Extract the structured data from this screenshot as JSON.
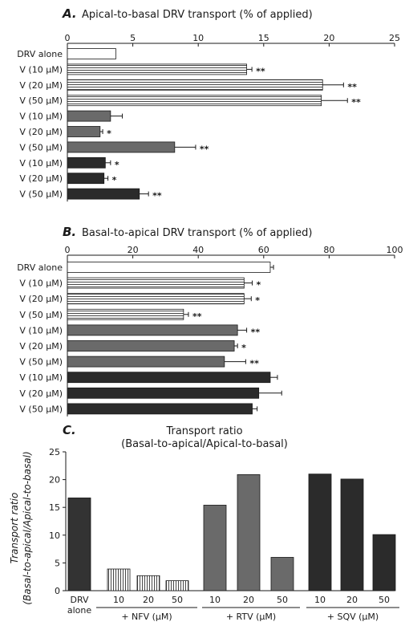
{
  "panels": [
    {
      "letter": "A.",
      "title": "Apical-to-basal DRV transport (% of applied)",
      "chart_data": {
        "type": "bar",
        "orientation": "horizontal",
        "title": "Apical-to-basal DRV transport (% of applied)",
        "xlim": [
          0,
          25
        ],
        "xticks": [
          0,
          5,
          10,
          15,
          20,
          25
        ],
        "categories": [
          "DRV alone",
          "V (10 μM)",
          "V (20 μM)",
          "V (50 μM)",
          "V (10 μM)",
          "V (20 μM)",
          "V (50 μM)",
          "V (10 μM)",
          "V (20 μM)",
          "V (50 μM)"
        ],
        "values": [
          3.7,
          13.7,
          19.5,
          19.4,
          3.3,
          2.5,
          8.2,
          2.9,
          2.8,
          5.5
        ],
        "errors": [
          0,
          0.4,
          1.6,
          2.0,
          0.9,
          0.2,
          1.6,
          0.4,
          0.3,
          0.7
        ],
        "significance": [
          "",
          "**",
          "**",
          "**",
          "",
          "*",
          "**",
          "*",
          "*",
          "**"
        ],
        "groups": [
          "white",
          "striped",
          "striped",
          "striped",
          "gray",
          "gray",
          "gray",
          "dark",
          "dark",
          "dark"
        ]
      }
    },
    {
      "letter": "B.",
      "title": "Basal-to-apical DRV transport (% of applied)",
      "chart_data": {
        "type": "bar",
        "orientation": "horizontal",
        "title": "Basal-to-apical DRV transport (% of applied)",
        "xlim": [
          0,
          100
        ],
        "xticks": [
          0,
          20,
          40,
          60,
          80,
          100
        ],
        "categories": [
          "DRV alone",
          "V (10 μM)",
          "V (20 μM)",
          "V (50 μM)",
          "V (10 μM)",
          "V (20 μM)",
          "V (50 μM)",
          "V (10 μM)",
          "V (20 μM)",
          "V (50 μM)"
        ],
        "values": [
          62,
          54,
          54,
          35.5,
          52,
          51,
          48,
          62,
          58.5,
          56.5
        ],
        "errors": [
          1,
          2.5,
          2.2,
          1.5,
          2.8,
          1.0,
          6.5,
          2.2,
          7.0,
          1.5
        ],
        "significance": [
          "",
          "*",
          "*",
          "**",
          "**",
          "*",
          "**",
          "",
          "",
          ""
        ],
        "groups": [
          "white",
          "striped",
          "striped",
          "striped",
          "gray",
          "gray",
          "gray",
          "dark",
          "dark",
          "dark"
        ]
      }
    },
    {
      "letter": "C.",
      "title": "Transport ratio",
      "subtitle": "(Basal-to-apical/Apical-to-basal)",
      "chart_data": {
        "type": "bar",
        "title": "Transport ratio",
        "subtitle": "(Basal-to-apical/Apical-to-basal)",
        "ylabel_line1": "Transport ratio",
        "ylabel_line2": "(Basal-to-apical/Apical-to-basal)",
        "ylim": [
          0,
          25
        ],
        "yticks": [
          0,
          5,
          10,
          15,
          20,
          25
        ],
        "categories": [
          "DRV alone",
          "10",
          "20",
          "50",
          "10",
          "20",
          "50",
          "10",
          "20",
          "50"
        ],
        "values": [
          16.7,
          3.9,
          2.7,
          1.8,
          15.4,
          20.9,
          6.0,
          21.0,
          20.1,
          10.1
        ],
        "groups": [
          "white",
          "striped",
          "striped",
          "striped",
          "gray",
          "gray",
          "gray",
          "dark",
          "dark",
          "dark"
        ],
        "group_labels": [
          "+ NFV  (μM)",
          "+ RTV  (μM)",
          "+ SQV (μM)"
        ],
        "drv_label_line1": "DRV",
        "drv_label_line2": "alone"
      }
    }
  ],
  "colors": {
    "white": "#ffffff",
    "stripe_line": "#333333",
    "gray": "#6a6a6a",
    "dark": "#2b2b2b",
    "drv_dark": "#333333",
    "axis": "#1a1a1a"
  }
}
